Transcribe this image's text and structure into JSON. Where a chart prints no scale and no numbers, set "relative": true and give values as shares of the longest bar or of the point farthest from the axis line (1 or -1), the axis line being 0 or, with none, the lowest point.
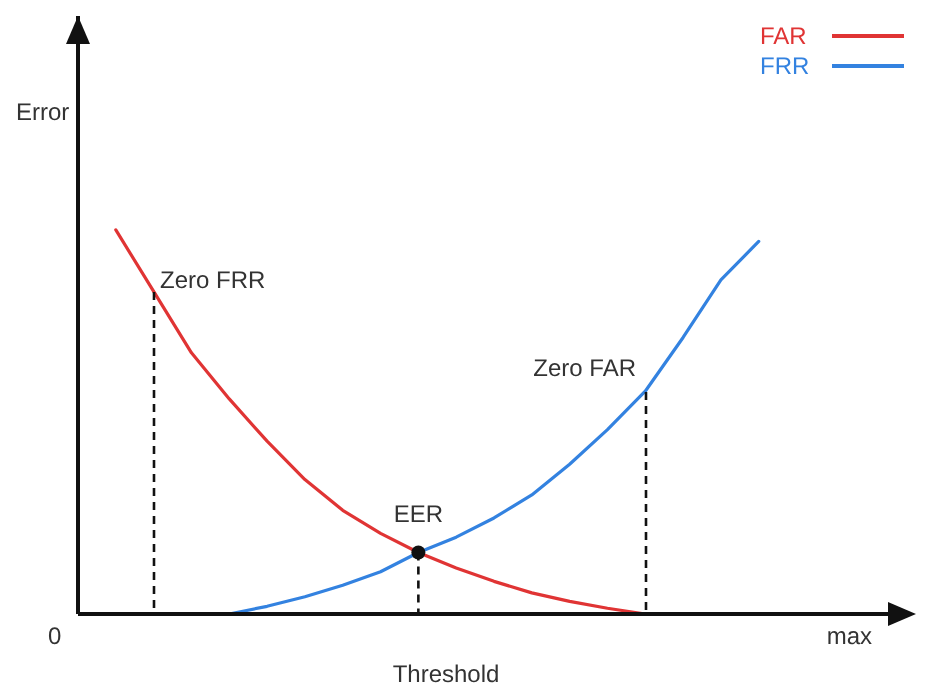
{
  "chart_data": {
    "type": "line",
    "relative": true,
    "xlabel": "Threshold",
    "ylabel": "Error",
    "legend": "top right",
    "marker": "none",
    "line_style": "solid",
    "grid": false,
    "categories": [
      null,
      null,
      null,
      null,
      null,
      null,
      null,
      null,
      null,
      null,
      null,
      null,
      null,
      null,
      null,
      null,
      null,
      null,
      null,
      null,
      null,
      null,
      null
    ],
    "series": [
      {
        "name": "FAR",
        "color": "#e03434",
        "values": [
          null,
          1,
          0.84,
          0.68,
          0.56,
          0.45,
          0.35,
          0.27,
          0.21,
          0.16,
          0.12,
          0.085,
          0.055,
          0.033,
          0.015,
          0,
          null,
          null,
          null,
          null,
          null,
          null,
          null
        ]
      },
      {
        "name": "FRR",
        "color": "#3382e0",
        "values": [
          null,
          null,
          null,
          null,
          0,
          0.02,
          0.045,
          0.075,
          0.11,
          0.16,
          0.2,
          0.25,
          0.31,
          0.39,
          0.48,
          0.58,
          0.72,
          0.87,
          0.97,
          null,
          null,
          null,
          null
        ]
      }
    ],
    "annotations": [
      "0",
      "max",
      "Zero FRR",
      {
        "text": "EER",
        "y": 0.16
      },
      "Zero FAR"
    ]
  }
}
